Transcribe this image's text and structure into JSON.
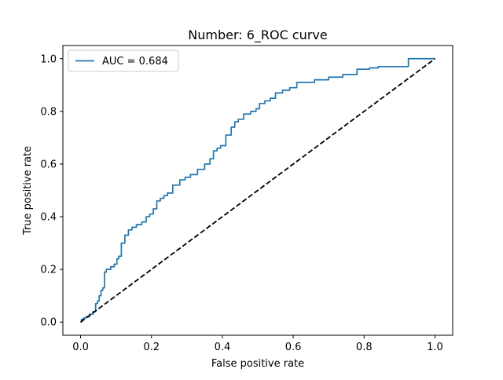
{
  "chart_data": {
    "type": "line",
    "title": "Number: 6_ROC curve",
    "xlabel": "False positive rate",
    "ylabel": "True positive rate",
    "xlim": [
      -0.05,
      1.05
    ],
    "ylim": [
      -0.05,
      1.05
    ],
    "xticks": [
      "0.0",
      "0.2",
      "0.4",
      "0.6",
      "0.8",
      "1.0"
    ],
    "yticks": [
      "0.0",
      "0.2",
      "0.4",
      "0.6",
      "0.8",
      "1.0"
    ],
    "grid": false,
    "legend_position": "upper left",
    "colors": {
      "roc": "#1f77b4",
      "baseline": "#000000"
    },
    "series": [
      {
        "name": "AUC = 0.684",
        "style": "solid",
        "x": [
          0.0,
          0.005,
          0.01,
          0.02,
          0.03,
          0.04,
          0.045,
          0.05,
          0.055,
          0.06,
          0.065,
          0.07,
          0.075,
          0.08,
          0.09,
          0.1,
          0.105,
          0.11,
          0.12,
          0.13,
          0.14,
          0.15,
          0.165,
          0.18,
          0.19,
          0.2,
          0.21,
          0.22,
          0.23,
          0.24,
          0.25,
          0.27,
          0.29,
          0.3,
          0.32,
          0.34,
          0.36,
          0.37,
          0.38,
          0.39,
          0.4,
          0.42,
          0.43,
          0.44,
          0.45,
          0.47,
          0.49,
          0.5,
          0.51,
          0.53,
          0.54,
          0.56,
          0.58,
          0.6,
          0.62,
          0.64,
          0.68,
          0.72,
          0.76,
          0.8,
          0.83,
          0.85,
          1.0
        ],
        "y": [
          0.0,
          0.01,
          0.015,
          0.02,
          0.03,
          0.04,
          0.07,
          0.08,
          0.1,
          0.12,
          0.13,
          0.19,
          0.2,
          0.2,
          0.21,
          0.22,
          0.24,
          0.25,
          0.3,
          0.33,
          0.35,
          0.36,
          0.37,
          0.38,
          0.4,
          0.41,
          0.43,
          0.46,
          0.47,
          0.48,
          0.49,
          0.52,
          0.54,
          0.55,
          0.56,
          0.58,
          0.6,
          0.62,
          0.65,
          0.66,
          0.67,
          0.71,
          0.74,
          0.76,
          0.77,
          0.79,
          0.8,
          0.81,
          0.83,
          0.84,
          0.85,
          0.87,
          0.88,
          0.89,
          0.91,
          0.91,
          0.92,
          0.93,
          0.94,
          0.96,
          0.965,
          0.97,
          1.0
        ]
      },
      {
        "name": "",
        "style": "dashed",
        "x": [
          0.0,
          1.0
        ],
        "y": [
          0.0,
          1.0
        ]
      }
    ]
  }
}
